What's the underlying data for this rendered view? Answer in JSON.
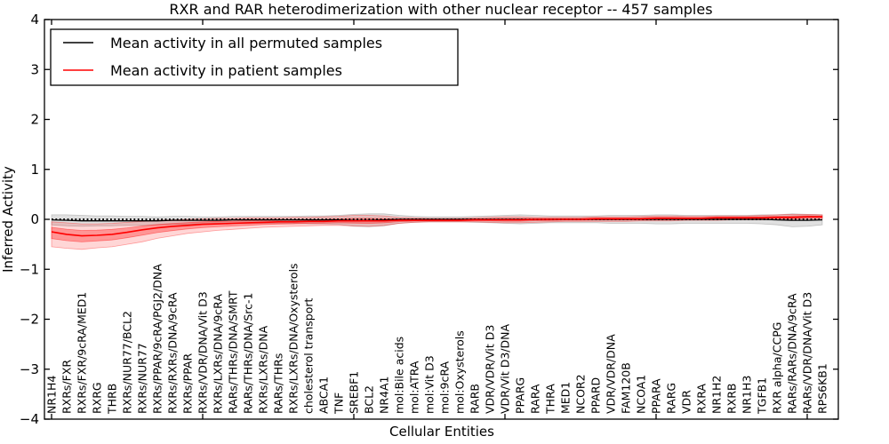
{
  "title": "RXR and RAR heterodimerization with other nuclear receptor -- 457 samples",
  "axes": {
    "x_label": "Cellular Entities",
    "y_label": "Inferred Activity",
    "y_ticks": [
      4,
      3,
      2,
      1,
      0,
      -1,
      -2,
      -3,
      -4
    ],
    "x_tick_indices": [
      0,
      10,
      20,
      30,
      40,
      50
    ]
  },
  "legend": {
    "items": [
      {
        "label": "Mean activity in all permuted samples",
        "color": "#000000"
      },
      {
        "label": "Mean activity in patient samples",
        "color": "#ff0000"
      }
    ]
  },
  "colors": {
    "frame": "#000000",
    "background": "#ffffff",
    "zero_reference": "#000000"
  },
  "chart_data": {
    "type": "line",
    "title": "RXR and RAR heterodimerization with other nuclear receptor -- 457 samples",
    "xlabel": "Cellular Entities",
    "ylabel": "Inferred Activity",
    "ylim": [
      -4,
      4
    ],
    "grid": false,
    "legend_position": "upper left",
    "zero_reference_line": {
      "y": 0,
      "style": "dotted",
      "color": "#000000"
    },
    "categories": [
      "NR1H4",
      "RXRs/FXR",
      "RXRs/FXR/9cRA/MED1",
      "RXRG",
      "THRB",
      "RXRs/NUR77/BCL2",
      "RXRs/NUR77",
      "RXRs/PPAR/9cRA/PGJ2/DNA",
      "RXRs/RXRs/DNA/9cRA",
      "RXRs/PPAR",
      "RXRs/VDR/DNA/Vit D3",
      "RXRs/LXRs/DNA/9cRA",
      "RARs/THRs/DNA/SMRT",
      "RARs/THRs/DNA/Src-1",
      "RXRs/LXRs/DNA",
      "RARs/THRs",
      "RXRs/LXRs/DNA/Oxysterols",
      "cholesterol transport",
      "ABCA1",
      "TNF",
      "SREBF1",
      "BCL2",
      "NR4A1",
      "mol:Bile acids",
      "mol:ATRA",
      "mol:Vit D3",
      "mol:9cRA",
      "mol:Oxysterols",
      "RARB",
      "VDR/VDR/Vit D3",
      "VDR/Vit D3/DNA",
      "PPARG",
      "RARA",
      "THRA",
      "MED1",
      "NCOR2",
      "PPARD",
      "VDR/VDR/DNA",
      "FAM120B",
      "NCOA1",
      "PPARA",
      "RARG",
      "VDR",
      "RXRA",
      "NR1H2",
      "RXRB",
      "NR1H3",
      "TGFB1",
      "RXR alpha/CCPG",
      "RARs/RARs/DNA/9cRA",
      "RARs/VDR/DNA/Vit D3",
      "RPS6KB1"
    ],
    "series": [
      {
        "name": "Mean activity in all permuted samples",
        "color": "#000000",
        "line_width": 1.3,
        "values": [
          -0.01,
          -0.02,
          -0.03,
          -0.03,
          -0.03,
          -0.03,
          -0.03,
          -0.03,
          -0.02,
          -0.02,
          -0.02,
          -0.02,
          -0.01,
          -0.01,
          -0.01,
          -0.01,
          -0.01,
          -0.01,
          -0.01,
          -0.01,
          -0.02,
          -0.02,
          -0.01,
          0,
          0,
          0,
          0,
          0,
          0,
          0,
          0,
          0,
          0,
          0,
          0,
          0,
          0,
          0,
          0,
          0,
          0,
          0,
          0,
          0,
          0,
          0,
          0,
          0,
          -0.01,
          -0.02,
          -0.02,
          -0.01
        ]
      },
      {
        "name": "Mean activity in patient samples",
        "color": "#ff0000",
        "line_width": 1.6,
        "values": [
          -0.25,
          -0.3,
          -0.33,
          -0.32,
          -0.3,
          -0.26,
          -0.21,
          -0.17,
          -0.14,
          -0.12,
          -0.1,
          -0.09,
          -0.08,
          -0.07,
          -0.06,
          -0.05,
          -0.05,
          -0.04,
          -0.04,
          -0.03,
          -0.03,
          -0.03,
          -0.03,
          -0.02,
          -0.02,
          -0.02,
          -0.02,
          -0.02,
          -0.01,
          -0.01,
          -0.01,
          -0.01,
          0.0,
          0.0,
          0.0,
          0.0,
          0.01,
          0.01,
          0.01,
          0.01,
          0.02,
          0.02,
          0.02,
          0.02,
          0.03,
          0.03,
          0.03,
          0.03,
          0.04,
          0.04,
          0.05,
          0.05
        ]
      }
    ],
    "bands": [
      {
        "name": "permuted-samples-spread",
        "center_series": 0,
        "fill": "rgba(115,115,115,0.22)",
        "edge": "rgba(90,90,90,0.30)",
        "half_width": [
          0.1,
          0.11,
          0.11,
          0.1,
          0.1,
          0.09,
          0.09,
          0.08,
          0.08,
          0.08,
          0.07,
          0.07,
          0.07,
          0.07,
          0.07,
          0.07,
          0.07,
          0.08,
          0.08,
          0.09,
          0.12,
          0.13,
          0.12,
          0.08,
          0.06,
          0.05,
          0.05,
          0.05,
          0.06,
          0.07,
          0.08,
          0.09,
          0.08,
          0.07,
          0.07,
          0.07,
          0.07,
          0.08,
          0.08,
          0.08,
          0.09,
          0.09,
          0.08,
          0.08,
          0.08,
          0.08,
          0.08,
          0.09,
          0.1,
          0.13,
          0.12,
          0.1
        ]
      },
      {
        "name": "patient-samples-spread-outer",
        "center_series": 1,
        "fill": "rgba(255,0,0,0.16)",
        "edge": "rgba(255,0,0,0.35)",
        "low": [
          -0.55,
          -0.58,
          -0.6,
          -0.57,
          -0.55,
          -0.5,
          -0.45,
          -0.38,
          -0.33,
          -0.28,
          -0.25,
          -0.22,
          -0.2,
          -0.18,
          -0.16,
          -0.15,
          -0.14,
          -0.13,
          -0.12,
          -0.12,
          -0.13,
          -0.14,
          -0.12,
          -0.08,
          -0.06,
          -0.05,
          -0.05,
          -0.05,
          -0.05,
          -0.06,
          -0.07,
          -0.07,
          -0.06,
          -0.05,
          -0.04,
          -0.04,
          -0.04,
          -0.04,
          -0.04,
          -0.03,
          -0.03,
          -0.03,
          -0.02,
          -0.02,
          -0.02,
          -0.01,
          -0.01,
          -0.01,
          0.0,
          0.0,
          0.01,
          0.01
        ],
        "high": [
          -0.05,
          -0.07,
          -0.09,
          -0.09,
          -0.08,
          -0.06,
          -0.04,
          -0.02,
          -0.01,
          0.0,
          0.01,
          0.02,
          0.02,
          0.03,
          0.03,
          0.03,
          0.04,
          0.04,
          0.05,
          0.06,
          0.08,
          0.08,
          0.07,
          0.04,
          0.03,
          0.02,
          0.02,
          0.02,
          0.03,
          0.04,
          0.05,
          0.05,
          0.04,
          0.04,
          0.04,
          0.04,
          0.05,
          0.05,
          0.05,
          0.06,
          0.07,
          0.07,
          0.06,
          0.06,
          0.07,
          0.07,
          0.07,
          0.08,
          0.09,
          0.1,
          0.1,
          0.09
        ]
      },
      {
        "name": "patient-samples-spread-inner",
        "center_series": 1,
        "fill": "rgba(255,0,0,0.30)",
        "edge": "rgba(255,0,0,0.40)",
        "derive_from": 1,
        "inner_scale": 0.45
      }
    ]
  }
}
